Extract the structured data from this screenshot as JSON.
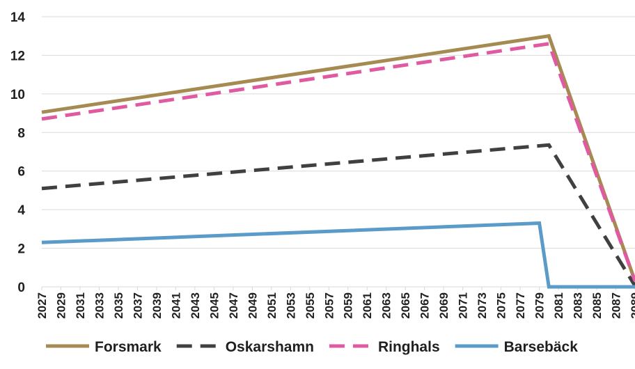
{
  "chart_data": {
    "type": "line",
    "title": "",
    "xlabel": "",
    "ylabel": "",
    "x_range": [
      2027,
      2089
    ],
    "x_tick_labels": [
      "2027",
      "2029",
      "2031",
      "2033",
      "2035",
      "2037",
      "2039",
      "2041",
      "2043",
      "2045",
      "2047",
      "2049",
      "2051",
      "2053",
      "2055",
      "2057",
      "2059",
      "2061",
      "2063",
      "2065",
      "2067",
      "2069",
      "2071",
      "2073",
      "2075",
      "2077",
      "2079",
      "2081",
      "2083",
      "2085",
      "2087",
      "2089"
    ],
    "ylim": [
      0,
      14
    ],
    "y_ticks": [
      "0",
      "2",
      "4",
      "6",
      "8",
      "10",
      "12",
      "14"
    ],
    "grid": "horizontal",
    "legend_position": "bottom",
    "series": [
      {
        "name": "Forsmark",
        "color": "#a58a52",
        "style": "solid",
        "points": [
          [
            2027,
            9.05
          ],
          [
            2080,
            13.0
          ],
          [
            2089,
            0.3
          ]
        ]
      },
      {
        "name": "Oskarshamn",
        "color": "#404040",
        "style": "dashed",
        "points": [
          [
            2027,
            5.1
          ],
          [
            2080,
            7.35
          ],
          [
            2089,
            0.05
          ]
        ]
      },
      {
        "name": "Ringhals",
        "color": "#e05aa2",
        "style": "dashed",
        "points": [
          [
            2027,
            8.7
          ],
          [
            2080,
            12.6
          ],
          [
            2089,
            0.3
          ]
        ]
      },
      {
        "name": "Barsebäck",
        "color": "#5b9bc9",
        "style": "solid",
        "points": [
          [
            2027,
            2.3
          ],
          [
            2079,
            3.3
          ],
          [
            2080,
            0.0
          ],
          [
            2089,
            0.0
          ]
        ]
      }
    ]
  }
}
